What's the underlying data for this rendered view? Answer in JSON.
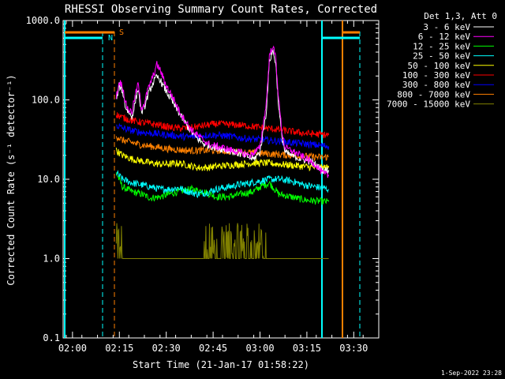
{
  "chart_data": {
    "type": "line",
    "title": "RHESSI Observing Summary Count Rates, Corrected",
    "ylabel": "Corrected Count Rate (s⁻¹ detector⁻¹)",
    "xlabel": "Start Time (21-Jan-17 01:58:22)",
    "yscale": "log",
    "ylim": [
      0.1,
      1000
    ],
    "xlim_minutes": [
      -3,
      98
    ],
    "y_ticks": [
      "1000.0",
      "100.0",
      "10.0",
      "1.0",
      "0.1"
    ],
    "x_ticks": [
      {
        "label": "02:00",
        "t": 0
      },
      {
        "label": "02:15",
        "t": 15
      },
      {
        "label": "02:30",
        "t": 30
      },
      {
        "label": "02:45",
        "t": 45
      },
      {
        "label": "03:00",
        "t": 60
      },
      {
        "label": "03:15",
        "t": 75
      },
      {
        "label": "03:30",
        "t": 90
      }
    ],
    "legend_header": "Det 1,3, Att 0",
    "legend_position": "right",
    "series": [
      {
        "name": "3 - 6 keV",
        "color": "#ffffff",
        "points": [
          [
            14,
            100
          ],
          [
            15,
            150
          ],
          [
            16,
            130
          ],
          [
            17,
            80
          ],
          [
            18,
            70
          ],
          [
            19,
            60
          ],
          [
            20,
            90
          ],
          [
            21,
            140
          ],
          [
            22,
            70
          ],
          [
            23,
            80
          ],
          [
            24,
            110
          ],
          [
            25,
            140
          ],
          [
            26,
            170
          ],
          [
            27,
            195
          ],
          [
            28,
            180
          ],
          [
            29,
            150
          ],
          [
            31,
            110
          ],
          [
            33,
            80
          ],
          [
            35,
            60
          ],
          [
            37,
            45
          ],
          [
            39,
            35
          ],
          [
            42,
            28
          ],
          [
            46,
            25
          ],
          [
            50,
            23
          ],
          [
            55,
            20
          ],
          [
            58,
            18
          ],
          [
            60,
            22
          ],
          [
            62,
            70
          ],
          [
            63,
            300
          ],
          [
            64,
            420
          ],
          [
            65,
            300
          ],
          [
            66,
            80
          ],
          [
            67,
            35
          ],
          [
            68,
            22
          ],
          [
            70,
            20
          ],
          [
            73,
            18
          ],
          [
            76,
            17
          ],
          [
            78,
            15
          ],
          [
            80,
            13
          ],
          [
            82,
            13
          ]
        ]
      },
      {
        "name": "6 - 12 keV",
        "color": "#ff00ff",
        "points": [
          [
            14,
            110
          ],
          [
            15,
            170
          ],
          [
            16,
            150
          ],
          [
            17,
            90
          ],
          [
            18,
            75
          ],
          [
            19,
            70
          ],
          [
            20,
            110
          ],
          [
            21,
            160
          ],
          [
            22,
            80
          ],
          [
            23,
            90
          ],
          [
            24,
            130
          ],
          [
            26,
            210
          ],
          [
            27,
            280
          ],
          [
            28,
            240
          ],
          [
            29,
            190
          ],
          [
            30,
            150
          ],
          [
            32,
            110
          ],
          [
            34,
            75
          ],
          [
            36,
            55
          ],
          [
            38,
            42
          ],
          [
            41,
            33
          ],
          [
            44,
            27
          ],
          [
            48,
            25
          ],
          [
            53,
            22
          ],
          [
            57,
            20
          ],
          [
            60,
            25
          ],
          [
            62,
            90
          ],
          [
            63,
            350
          ],
          [
            64,
            480
          ],
          [
            65,
            350
          ],
          [
            66,
            100
          ],
          [
            67,
            40
          ],
          [
            68,
            25
          ],
          [
            71,
            22
          ],
          [
            75,
            18
          ],
          [
            78,
            15
          ],
          [
            80,
            12
          ],
          [
            82,
            11
          ]
        ]
      },
      {
        "name": "12 - 25 keV",
        "color": "#00ff00",
        "points": [
          [
            14,
            12
          ],
          [
            16,
            8
          ],
          [
            19,
            7
          ],
          [
            22,
            6.5
          ],
          [
            25,
            5.8
          ],
          [
            28,
            6
          ],
          [
            31,
            6.5
          ],
          [
            34,
            7
          ],
          [
            38,
            7.5
          ],
          [
            42,
            7
          ],
          [
            46,
            6
          ],
          [
            50,
            6
          ],
          [
            54,
            6.5
          ],
          [
            58,
            7
          ],
          [
            60,
            8
          ],
          [
            63,
            9
          ],
          [
            66,
            6.5
          ],
          [
            70,
            6
          ],
          [
            74,
            5.5
          ],
          [
            78,
            5.3
          ],
          [
            82,
            5.2
          ]
        ]
      },
      {
        "name": "25 - 50 keV",
        "color": "#00ffff",
        "points": [
          [
            14,
            12
          ],
          [
            16,
            10
          ],
          [
            19,
            9
          ],
          [
            22,
            8.5
          ],
          [
            25,
            8
          ],
          [
            28,
            7.5
          ],
          [
            31,
            7.5
          ],
          [
            34,
            7.8
          ],
          [
            37,
            7
          ],
          [
            40,
            6.5
          ],
          [
            43,
            6.8
          ],
          [
            46,
            7.5
          ],
          [
            50,
            8
          ],
          [
            53,
            8.5
          ],
          [
            57,
            9
          ],
          [
            60,
            9.5
          ],
          [
            63,
            10
          ],
          [
            66,
            10
          ],
          [
            70,
            9.5
          ],
          [
            74,
            8.5
          ],
          [
            78,
            8
          ],
          [
            82,
            7.5
          ]
        ]
      },
      {
        "name": "50 - 100 keV",
        "color": "#ffff00",
        "points": [
          [
            14,
            23
          ],
          [
            16,
            20
          ],
          [
            19,
            18
          ],
          [
            22,
            17
          ],
          [
            25,
            16
          ],
          [
            28,
            15.5
          ],
          [
            31,
            15.5
          ],
          [
            34,
            16
          ],
          [
            37,
            15
          ],
          [
            40,
            14
          ],
          [
            43,
            14
          ],
          [
            46,
            14.5
          ],
          [
            50,
            15
          ],
          [
            54,
            15.5
          ],
          [
            58,
            16
          ],
          [
            62,
            16
          ],
          [
            66,
            15.5
          ],
          [
            70,
            15
          ],
          [
            74,
            14.5
          ],
          [
            78,
            14
          ],
          [
            82,
            14
          ]
        ]
      },
      {
        "name": "100 - 300 keV",
        "color": "#ff0000",
        "points": [
          [
            14,
            65
          ],
          [
            16,
            60
          ],
          [
            19,
            55
          ],
          [
            22,
            52
          ],
          [
            25,
            50
          ],
          [
            28,
            48
          ],
          [
            31,
            45
          ],
          [
            34,
            44
          ],
          [
            37,
            44
          ],
          [
            40,
            46
          ],
          [
            43,
            48
          ],
          [
            46,
            50
          ],
          [
            50,
            49
          ],
          [
            54,
            48
          ],
          [
            58,
            46
          ],
          [
            62,
            44
          ],
          [
            66,
            42
          ],
          [
            70,
            40
          ],
          [
            74,
            38
          ],
          [
            78,
            37
          ],
          [
            82,
            36
          ]
        ]
      },
      {
        "name": "300 - 800 keV",
        "color": "#0000ff",
        "points": [
          [
            14,
            48
          ],
          [
            16,
            44
          ],
          [
            19,
            41
          ],
          [
            22,
            39
          ],
          [
            25,
            38
          ],
          [
            28,
            37
          ],
          [
            31,
            36
          ],
          [
            34,
            35
          ],
          [
            37,
            34
          ],
          [
            40,
            35
          ],
          [
            43,
            36
          ],
          [
            46,
            36
          ],
          [
            50,
            35
          ],
          [
            54,
            33
          ],
          [
            58,
            32
          ],
          [
            62,
            31
          ],
          [
            66,
            30
          ],
          [
            70,
            29
          ],
          [
            74,
            28
          ],
          [
            78,
            27
          ],
          [
            82,
            26
          ]
        ]
      },
      {
        "name": "800 - 7000 keV",
        "color": "#ff8000",
        "points": [
          [
            14,
            35
          ],
          [
            16,
            31
          ],
          [
            19,
            29
          ],
          [
            22,
            27
          ],
          [
            25,
            26
          ],
          [
            28,
            25
          ],
          [
            31,
            24
          ],
          [
            34,
            23.5
          ],
          [
            37,
            23
          ],
          [
            40,
            23
          ],
          [
            43,
            23
          ],
          [
            46,
            23
          ],
          [
            50,
            22.5
          ],
          [
            54,
            22
          ],
          [
            58,
            21.5
          ],
          [
            62,
            21
          ],
          [
            66,
            20.5
          ],
          [
            70,
            20
          ],
          [
            74,
            19.5
          ],
          [
            78,
            19
          ],
          [
            82,
            19
          ]
        ]
      },
      {
        "name": "7000 - 15000 keV",
        "color": "#808000",
        "points": [
          [
            14,
            2
          ],
          [
            15,
            2
          ],
          [
            16,
            1
          ],
          [
            30,
            1
          ],
          [
            32,
            1
          ],
          [
            34,
            1
          ],
          [
            36,
            1
          ],
          [
            38,
            1
          ],
          [
            40,
            1
          ],
          [
            42,
            1
          ],
          [
            44,
            1.5
          ],
          [
            46,
            2
          ],
          [
            48,
            2
          ],
          [
            50,
            2
          ],
          [
            52,
            1.5
          ],
          [
            54,
            2
          ],
          [
            56,
            1.5
          ],
          [
            58,
            2
          ],
          [
            60,
            1.5
          ],
          [
            62,
            1
          ],
          [
            66,
            1
          ],
          [
            70,
            1
          ],
          [
            74,
            1
          ],
          [
            78,
            1
          ],
          [
            80,
            1
          ],
          [
            82,
            1
          ]
        ]
      }
    ],
    "flag_labels": {
      "saa": "N",
      "night": "S"
    },
    "footer_date": "1-Sep-2022 23:28"
  }
}
